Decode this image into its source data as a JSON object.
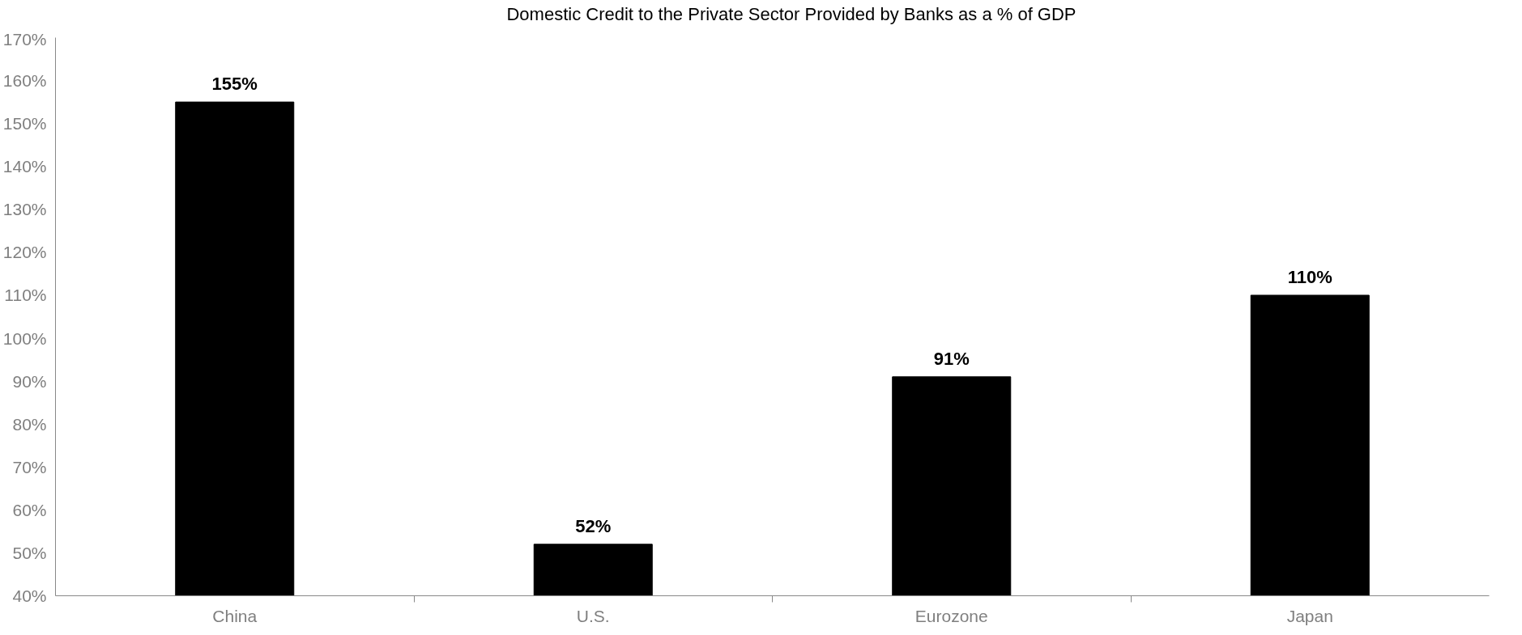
{
  "chart_data": {
    "type": "bar",
    "categories": [
      "China",
      "U.S.",
      "Eurozone",
      "Japan"
    ],
    "series": [
      {
        "name": "Domestic Credit to the Private Sector Provided by Banks as a % of GDP",
        "color": "#000000",
        "values": [
          155,
          52,
          91,
          110
        ],
        "value_labels": [
          "155%",
          "52%",
          "91%",
          "110%"
        ]
      }
    ],
    "ylim": [
      40,
      170
    ],
    "yticks": [
      {
        "value": 40,
        "label": "40%"
      },
      {
        "value": 50,
        "label": "50%"
      },
      {
        "value": 60,
        "label": "60%"
      },
      {
        "value": 70,
        "label": "70%"
      },
      {
        "value": 80,
        "label": "80%"
      },
      {
        "value": 90,
        "label": "90%"
      },
      {
        "value": 100,
        "label": "100%"
      },
      {
        "value": 110,
        "label": "110%"
      },
      {
        "value": 120,
        "label": "120%"
      },
      {
        "value": 130,
        "label": "130%"
      },
      {
        "value": 140,
        "label": "140%"
      },
      {
        "value": 150,
        "label": "150%"
      },
      {
        "value": 160,
        "label": "160%"
      },
      {
        "value": 170,
        "label": "170%"
      }
    ],
    "grid": false,
    "legend": "top"
  }
}
